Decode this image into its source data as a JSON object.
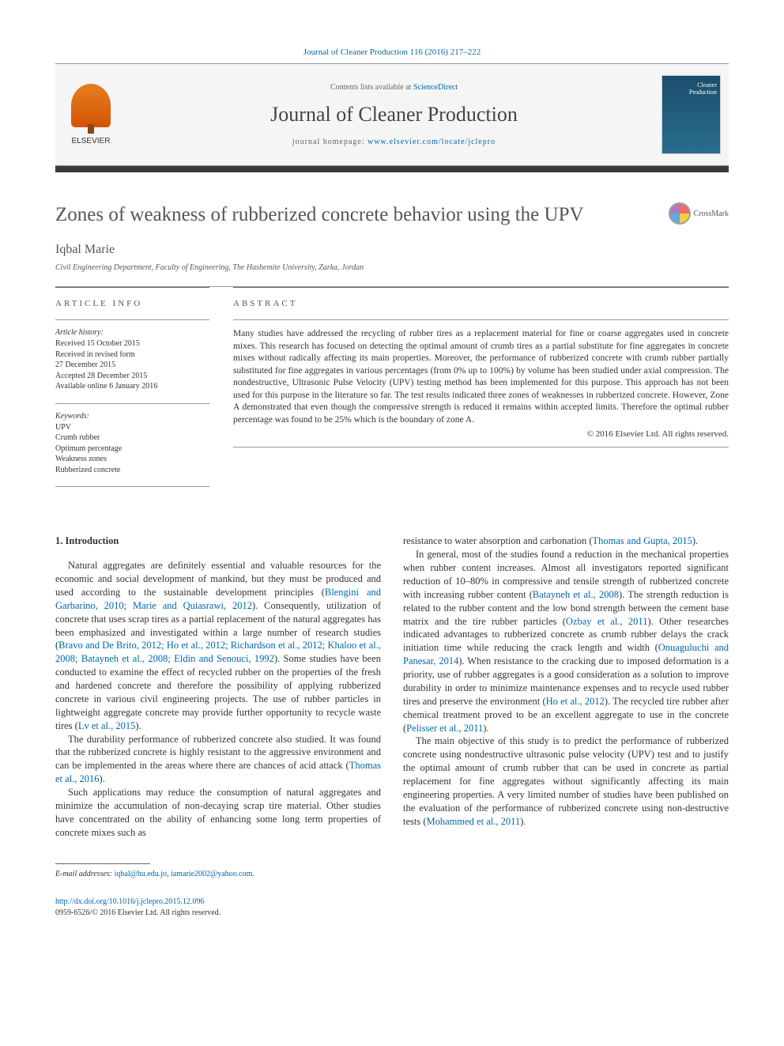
{
  "citation": "Journal of Cleaner Production 116 (2016) 217–222",
  "header": {
    "elsevier": "ELSEVIER",
    "contents_prefix": "Contents lists available at ",
    "contents_link": "ScienceDirect",
    "journal_name": "Journal of Cleaner Production",
    "homepage_prefix": "journal homepage: ",
    "homepage_url": "www.elsevier.com/locate/jclepro"
  },
  "crossmark_label": "CrossMark",
  "title": "Zones of weakness of rubberized concrete behavior using the UPV",
  "author": "Iqbal Marie",
  "affiliation": "Civil Engineering Department, Faculty of Engineering, The Hashemite University, Zarka, Jordan",
  "article_info": {
    "heading": "ARTICLE INFO",
    "history_label": "Article history:",
    "history": [
      "Received 15 October 2015",
      "Received in revised form",
      "27 December 2015",
      "Accepted 28 December 2015",
      "Available online 6 January 2016"
    ],
    "keywords_label": "Keywords:",
    "keywords": [
      "UPV",
      "Crumb rubber",
      "Optimum percentage",
      "Weakness zones",
      "Rubberized concrete"
    ]
  },
  "abstract": {
    "heading": "ABSTRACT",
    "text": "Many studies have addressed the recycling of rubber tires as a replacement material for fine or coarse aggregates used in concrete mixes. This research has focused on detecting the optimal amount of crumb tires as a partial substitute for fine aggregates in concrete mixes without radically affecting its main properties. Moreover, the performance of rubberized concrete with crumb rubber partially substituted for fine aggregates in various percentages (from 0% up to 100%) by volume has been studied under axial compression. The nondestructive, Ultrasonic Pulse Velocity (UPV) testing method has been implemented for this purpose. This approach has not been used for this purpose in the literature so far. The test results indicated three zones of weaknesses in rubberized concrete. However, Zone A demonstrated that even though the compressive strength is reduced it remains within accepted limits. Therefore the optimal rubber percentage was found to be 25% which is the boundary of zone A.",
    "copyright": "© 2016 Elsevier Ltd. All rights reserved."
  },
  "body": {
    "section_heading": "1. Introduction",
    "col1": {
      "p1_a": "Natural aggregates are definitely essential and valuable resources for the economic and social development of mankind, but they must be produced and used according to the sustainable development principles (",
      "p1_ref1": "Blengini and Garbarino, 2010; Marie and Quiasrawi, 2012",
      "p1_b": "). Consequently, utilization of concrete that uses scrap tires as a partial replacement of the natural aggregates has been emphasized and investigated within a large number of research studies (",
      "p1_ref2": "Bravo and De Brito, 2012; Ho et al., 2012; Richardson et al., 2012; Khaloo et al., 2008; Batayneh et al., 2008; Eldin and Senouci, 1992",
      "p1_c": "). Some studies have been conducted to examine the effect of recycled rubber on the properties of the fresh and hardened concrete and therefore the possibility of applying rubberized concrete in various civil engineering projects. The use of rubber particles in lightweight aggregate concrete may provide further opportunity to recycle waste tires (",
      "p1_ref3": "Lv et al., 2015",
      "p1_d": ").",
      "p2_a": "The durability performance of rubberized concrete also studied. It was found that the rubberized concrete is highly resistant to the aggressive environment and can be implemented in the areas where there are chances of acid attack (",
      "p2_ref1": "Thomas et al., 2016",
      "p2_b": ").",
      "p3": "Such applications may reduce the consumption of natural aggregates and minimize the accumulation of non-decaying scrap tire material. Other studies have concentrated on the ability of enhancing some long term properties of concrete mixes such as"
    },
    "col2": {
      "p1_a": "resistance to water absorption and carbonation (",
      "p1_ref1": "Thomas and Gupta, 2015",
      "p1_b": ").",
      "p2_a": "In general, most of the studies found a reduction in the mechanical properties when rubber content increases. Almost all investigators reported significant reduction of 10–80% in compressive and tensile strength of rubberized concrete with increasing rubber content (",
      "p2_ref1": "Batayneh et al., 2008",
      "p2_b": "). The strength reduction is related to the rubber content and the low bond strength between the cement base matrix and the tire rubber particles (",
      "p2_ref2": "Ozbay et al., 2011",
      "p2_c": "). Other researches indicated advantages to rubberized concrete as crumb rubber delays the crack initiation time while reducing the crack length and width (",
      "p2_ref3": "Onuaguluchi and Panesar, 2014",
      "p2_d": "). When resistance to the cracking due to imposed deformation is a priority, use of rubber aggregates is a good consideration as a solution to improve durability in order to minimize maintenance expenses and to recycle used rubber tires and preserve the environment (",
      "p2_ref4": "Ho et al., 2012",
      "p2_e": "). The recycled tire rubber after chemical treatment proved to be an excellent aggregate to use in the concrete (",
      "p2_ref5": "Pelisser et al., 2011",
      "p2_f": ").",
      "p3_a": "The main objective of this study is to predict the performance of rubberized concrete using nondestructive ultrasonic pulse velocity (UPV) test and to justify the optimal amount of crumb rubber that can be used in concrete as partial replacement for fine aggregates without significantly affecting its main engineering properties. A very limited number of studies have been published on the evaluation of the performance of rubberized concrete using non-destructive tests (",
      "p3_ref1": "Mohammed et al., 2011",
      "p3_b": ")."
    }
  },
  "footer": {
    "email_label": "E-mail addresses: ",
    "email1": "iqbal@hu.edu.jo",
    "email_sep": ", ",
    "email2": "iamarie2002@yahoo.com",
    "email_end": ".",
    "doi": "http://dx.doi.org/10.1016/j.jclepro.2015.12.096",
    "issn": "0959-6526/© 2016 Elsevier Ltd. All rights reserved."
  },
  "colors": {
    "link": "#0066aa",
    "text": "#333333",
    "heading_gray": "#555555",
    "rule": "#999999",
    "darkbar": "#3a3a3a",
    "header_bg": "#f5f5f5"
  }
}
